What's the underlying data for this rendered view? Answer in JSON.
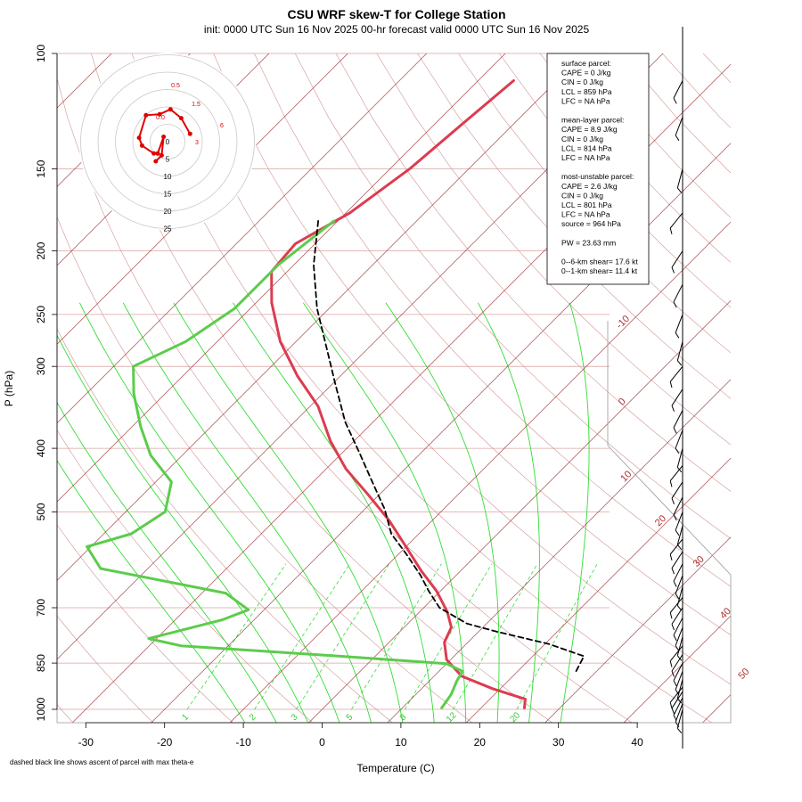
{
  "title": "CSU WRF skew-T for College Station",
  "subtitle": "init: 0000 UTC Sun 16 Nov 2025     00-hr forecast valid 0000 UTC Sun 16 Nov 2025",
  "footnote": "dashed black line shows ascent of parcel with max theta-e",
  "colors": {
    "temperature": "#dc3c50",
    "dewpoint": "#5ccc4c",
    "parcel": "#000000",
    "isotherm": "#9b2a2a",
    "dry_adiabat": "#cc8888",
    "moist_adiabat": "#33dd33",
    "isobar": "#d9a3a3",
    "hodograph": "#e00000"
  },
  "chart_data": {
    "type": "line",
    "subtype": "skew-T log-P diagram",
    "xlabel": "Temperature (C)",
    "ylabel": "P (hPa)",
    "x_ticks": [
      -30,
      -20,
      -10,
      0,
      10,
      20,
      30,
      40
    ],
    "y_ticks": [
      100,
      150,
      200,
      250,
      300,
      400,
      500,
      700,
      850,
      1000
    ],
    "xlim": [
      -33,
      42
    ],
    "ylim": [
      1050,
      100
    ],
    "y_scale": "log",
    "isotherm_labels": [
      -10,
      0,
      10,
      20,
      30,
      40,
      50
    ],
    "mixing_ratio_labels": [
      "1",
      "2",
      "3",
      "5",
      "8",
      "12",
      "20"
    ],
    "series": [
      {
        "name": "temperature",
        "style": "solid",
        "points": [
          [
            -55.5,
            110
          ],
          [
            -56.5,
            128
          ],
          [
            -57.5,
            150
          ],
          [
            -59.5,
            175
          ],
          [
            -62.5,
            195
          ],
          [
            -62,
            215
          ],
          [
            -58,
            240
          ],
          [
            -52,
            275
          ],
          [
            -45.5,
            310
          ],
          [
            -39,
            345
          ],
          [
            -33,
            390
          ],
          [
            -27.5,
            430
          ],
          [
            -21.5,
            470
          ],
          [
            -15.5,
            515
          ],
          [
            -10,
            565
          ],
          [
            -5,
            615
          ],
          [
            -0.5,
            660
          ],
          [
            3.5,
            710
          ],
          [
            6,
            750
          ],
          [
            7,
            790
          ],
          [
            9.5,
            840
          ],
          [
            13.5,
            890
          ],
          [
            19,
            930
          ],
          [
            24.5,
            965
          ],
          [
            25.5,
            995
          ]
        ]
      },
      {
        "name": "dewpoint",
        "style": "solid",
        "points": [
          [
            -60.5,
            180
          ],
          [
            -62,
            210
          ],
          [
            -62,
            245
          ],
          [
            -64,
            275
          ],
          [
            -67.5,
            300
          ],
          [
            -64,
            330
          ],
          [
            -59,
            370
          ],
          [
            -54,
            410
          ],
          [
            -48,
            450
          ],
          [
            -45,
            500
          ],
          [
            -46.5,
            540
          ],
          [
            -50.5,
            565
          ],
          [
            -46,
            610
          ],
          [
            -27,
            665
          ],
          [
            -22,
            705
          ],
          [
            -24,
            730
          ],
          [
            -31,
            780
          ],
          [
            -26,
            800
          ],
          [
            -4.5,
            830
          ],
          [
            10,
            852
          ],
          [
            13,
            875
          ],
          [
            13.5,
            905
          ],
          [
            14.5,
            950
          ],
          [
            15,
            995
          ]
        ]
      },
      {
        "name": "parcel",
        "style": "dashed",
        "points": [
          [
            -62.5,
            180
          ],
          [
            -57.5,
            210
          ],
          [
            -51.5,
            245
          ],
          [
            -45.5,
            280
          ],
          [
            -39.5,
            320
          ],
          [
            -33.5,
            365
          ],
          [
            -28,
            405
          ],
          [
            -22.5,
            450
          ],
          [
            -17.5,
            495
          ],
          [
            -13.5,
            540
          ],
          [
            -9,
            580
          ],
          [
            -4.5,
            625
          ],
          [
            -1.5,
            660
          ],
          [
            2,
            700
          ],
          [
            7.5,
            740
          ],
          [
            12,
            760
          ],
          [
            20.5,
            795
          ],
          [
            26.5,
            830
          ],
          [
            27.5,
            880
          ]
        ]
      }
    ],
    "hodograph": {
      "type": "line",
      "ring_labels": [
        "0",
        "5",
        "10",
        "15",
        "20",
        "25"
      ],
      "height_labels": [
        "0.5",
        "1.5",
        "0.0",
        "6",
        "3"
      ],
      "points": [
        [
          11.5,
          -4
        ],
        [
          7,
          -12
        ],
        [
          1.5,
          -16.5
        ],
        [
          -4,
          -14
        ],
        [
          -11,
          -13.5
        ],
        [
          -14.5,
          -2
        ],
        [
          -13,
          2
        ],
        [
          -7,
          6
        ],
        [
          -5,
          6
        ],
        [
          -2,
          -2.5
        ],
        [
          -3,
          7
        ],
        [
          -6,
          10
        ]
      ]
    }
  },
  "info_box": {
    "lines": [
      "surface parcel:",
      "CAPE = 0 J/kg",
      "CIN = 0 J/kg",
      "LCL = 859 hPa",
      "LFC = NA hPa",
      "",
      "mean-layer parcel:",
      "CAPE = 8.9 J/kg",
      "CIN = 0 J/kg",
      "LCL = 814 hPa",
      "LFC = NA hPa",
      "",
      "most-unstable parcel:",
      "CAPE = 2.6 J/kg",
      "CIN = 0 J/kg",
      "LCL = 801 hPa",
      "LFC = NA hPa",
      "source = 964 hPa",
      "",
      "PW =  23.63 mm",
      "",
      "0--6-km shear= 17.6 kt",
      "0--1-km shear= 11.4 kt"
    ]
  },
  "wind_barbs": {
    "levels_hpa": [
      1000,
      980,
      960,
      940,
      925,
      900,
      875,
      850,
      825,
      800,
      775,
      750,
      725,
      700,
      675,
      650,
      625,
      600,
      575,
      550,
      525,
      500,
      475,
      450,
      425,
      400,
      375,
      350,
      325,
      300,
      275,
      250,
      225,
      200,
      175,
      150,
      125,
      110
    ]
  }
}
